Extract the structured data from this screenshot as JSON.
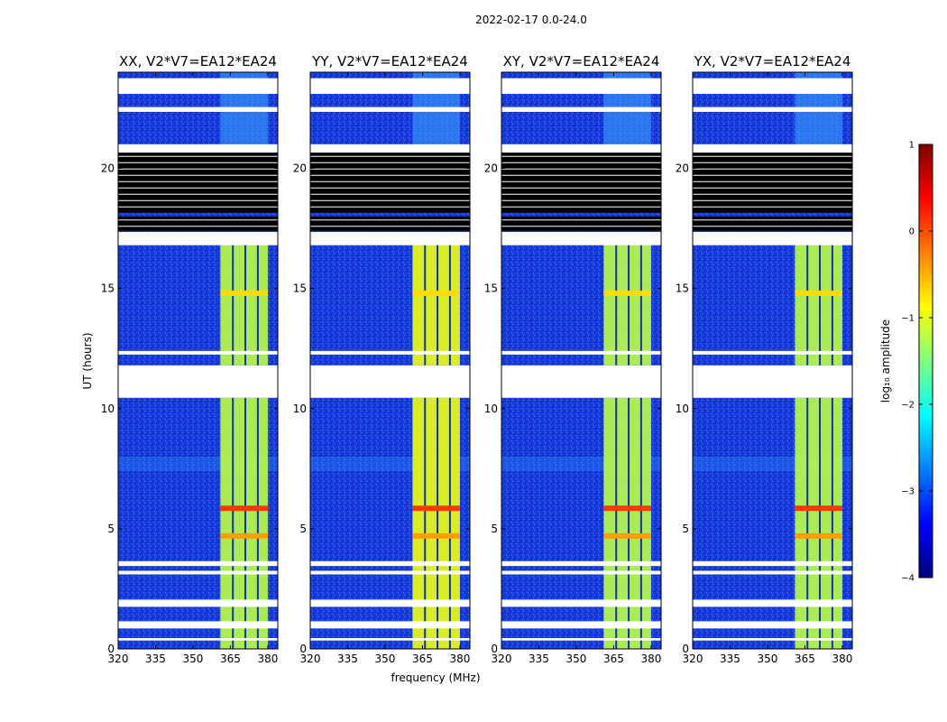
{
  "chart_data": {
    "type": "heatmap",
    "suptitle": "2022-02-17 0.0-24.0",
    "xlabel": "frequency (MHz)",
    "ylabel": "UT (hours)",
    "xlim": [
      320,
      384
    ],
    "ylim": [
      0,
      24
    ],
    "xticks": [
      "320",
      "335",
      "350",
      "365",
      "380"
    ],
    "xtick_values": [
      320,
      335,
      350,
      365,
      380
    ],
    "yticks": [
      "0",
      "5",
      "10",
      "15",
      "20"
    ],
    "ytick_values": [
      0,
      5,
      10,
      15,
      20
    ],
    "panels": [
      {
        "title": "XX, V2*V7=EA12*EA24",
        "product": "XX"
      },
      {
        "title": "YY, V2*V7=EA12*EA24",
        "product": "YY"
      },
      {
        "title": "XY, V2*V7=EA12*EA24",
        "product": "XY"
      },
      {
        "title": "YX, V2*V7=EA12*EA24",
        "product": "YX"
      }
    ],
    "colorbar": {
      "label": "log₁₀ amplitude",
      "range": [
        -4,
        1
      ],
      "ticks": [
        "1",
        "0",
        "−1",
        "−2",
        "−3",
        "−4"
      ],
      "tick_values": [
        1,
        0,
        -1,
        -2,
        -3,
        -4
      ],
      "colormap": "jet"
    },
    "rfi_band_mhz": [
      361,
      380
    ],
    "rfi_channel_gaps_mhz": [
      366,
      371,
      376
    ],
    "background_log10_amplitude": -3.0,
    "rfi_log10_amplitude": -1.2,
    "strong_rfi_events": [
      {
        "ut_hours": 5.85,
        "log10_amplitude": 0.1
      },
      {
        "ut_hours": 4.7,
        "log10_amplitude": -0.4
      },
      {
        "ut_hours": 14.8,
        "log10_amplitude": -0.7
      }
    ],
    "flagged_blank_ut_ranges": [
      [
        0.35,
        0.45
      ],
      [
        0.85,
        1.15
      ],
      [
        1.75,
        2.05
      ],
      [
        3.1,
        3.25
      ],
      [
        3.45,
        3.65
      ],
      [
        10.45,
        11.8
      ],
      [
        12.25,
        12.4
      ],
      [
        16.8,
        17.35
      ],
      [
        20.65,
        21.0
      ],
      [
        22.35,
        22.55
      ],
      [
        23.1,
        23.75
      ]
    ],
    "missing_black_ut_ranges": [
      [
        17.4,
        18.0
      ],
      [
        18.15,
        20.65
      ]
    ]
  }
}
